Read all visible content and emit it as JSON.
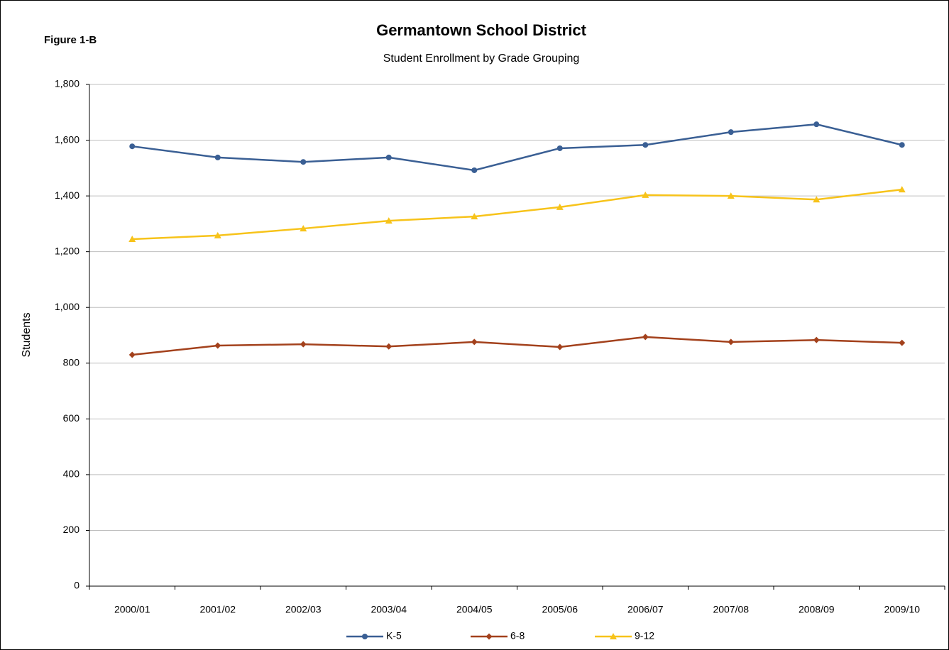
{
  "chart_data": {
    "type": "line",
    "figure_label": "Figure 1-B",
    "title": "Germantown School District",
    "subtitle": "Student Enrollment by Grade Grouping",
    "ylabel": "Students",
    "categories": [
      "2000/01",
      "2001/02",
      "2002/03",
      "2003/04",
      "2004/05",
      "2005/06",
      "2006/07",
      "2007/08",
      "2008/09",
      "2009/10"
    ],
    "series": [
      {
        "name": "K-5",
        "color": "#3a5f94",
        "marker": "circle",
        "values": [
          1578,
          1538,
          1522,
          1538,
          1492,
          1571,
          1583,
          1629,
          1657,
          1583
        ]
      },
      {
        "name": "6-8",
        "color": "#a3411c",
        "marker": "diamond",
        "values": [
          830,
          863,
          868,
          860,
          876,
          858,
          894,
          876,
          883,
          873
        ]
      },
      {
        "name": "9-12",
        "color": "#f7c31a",
        "marker": "triangle",
        "values": [
          1245,
          1258,
          1283,
          1311,
          1326,
          1360,
          1403,
          1400,
          1387,
          1423
        ]
      }
    ],
    "ylim": [
      0,
      1800
    ],
    "yticks": [
      0,
      200,
      400,
      600,
      800,
      {
        "value": 1000,
        "label": "1,000"
      },
      {
        "value": 1200,
        "label": "1,200"
      },
      {
        "value": 1400,
        "label": "1,400"
      },
      {
        "value": 1600,
        "label": "1,600"
      },
      {
        "value": 1800,
        "label": "1,800"
      }
    ],
    "grid": true,
    "legend": "bottom"
  }
}
